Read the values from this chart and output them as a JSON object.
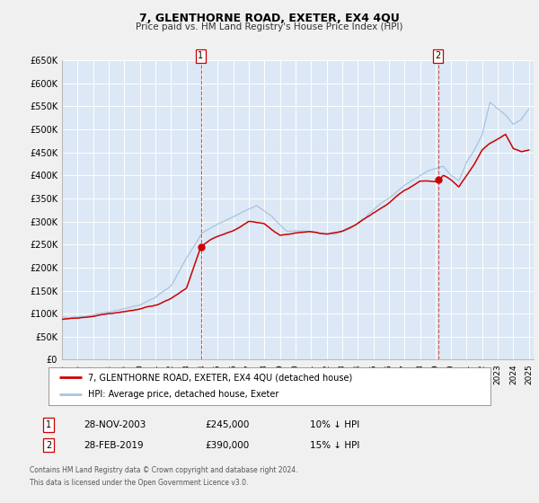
{
  "title": "7, GLENTHORNE ROAD, EXETER, EX4 4QU",
  "subtitle": "Price paid vs. HM Land Registry's House Price Index (HPI)",
  "legend_line1": "7, GLENTHORNE ROAD, EXETER, EX4 4QU (detached house)",
  "legend_line2": "HPI: Average price, detached house, Exeter",
  "annotation1_label": "1",
  "annotation1_date": "28-NOV-2003",
  "annotation1_price": "£245,000",
  "annotation1_hpi": "10% ↓ HPI",
  "annotation2_label": "2",
  "annotation2_date": "28-FEB-2019",
  "annotation2_price": "£390,000",
  "annotation2_hpi": "15% ↓ HPI",
  "footer1": "Contains HM Land Registry data © Crown copyright and database right 2024.",
  "footer2": "This data is licensed under the Open Government Licence v3.0.",
  "hpi_color": "#a8c4e0",
  "price_color": "#cc0000",
  "vline_color": "#cc0000",
  "fig_bg": "#f0f0f0",
  "plot_bg": "#dce8f5",
  "grid_color": "#ffffff",
  "ylim_max": 650000,
  "xlim_start": 1995.0,
  "xlim_end": 2025.3,
  "sale1_x": 2003.917,
  "sale1_y": 245000,
  "sale2_x": 2019.167,
  "sale2_y": 390000,
  "vline1_x": 2003.917,
  "vline2_x": 2019.167,
  "yticks": [
    0,
    50000,
    100000,
    150000,
    200000,
    250000,
    300000,
    350000,
    400000,
    450000,
    500000,
    550000,
    600000,
    650000
  ],
  "hpi_anchors_x": [
    1995.0,
    1996.0,
    1997.0,
    1998.0,
    1999.0,
    2000.0,
    2001.0,
    2002.0,
    2003.0,
    2004.0,
    2005.0,
    2006.0,
    2007.5,
    2008.5,
    2009.5,
    2010.5,
    2011.5,
    2012.5,
    2013.5,
    2014.5,
    2015.5,
    2016.5,
    2017.5,
    2018.5,
    2019.5,
    2020.0,
    2020.5,
    2021.0,
    2021.5,
    2022.0,
    2022.5,
    2023.0,
    2023.5,
    2024.0,
    2024.5,
    2025.0
  ],
  "hpi_anchors_y": [
    90000,
    93000,
    97000,
    104000,
    110000,
    118000,
    135000,
    162000,
    220000,
    275000,
    295000,
    310000,
    335000,
    310000,
    278000,
    280000,
    275000,
    272000,
    285000,
    310000,
    340000,
    365000,
    390000,
    410000,
    420000,
    400000,
    390000,
    430000,
    455000,
    490000,
    560000,
    545000,
    530000,
    510000,
    520000,
    545000
  ],
  "price_anchors_x": [
    1995.0,
    1996.0,
    1997.0,
    1998.0,
    1999.0,
    2000.0,
    2001.0,
    2002.0,
    2003.0,
    2003.917,
    2004.5,
    2005.0,
    2006.0,
    2007.0,
    2008.0,
    2009.0,
    2010.0,
    2011.0,
    2012.0,
    2013.0,
    2014.0,
    2015.0,
    2016.0,
    2017.0,
    2018.0,
    2019.0,
    2019.167,
    2019.5,
    2020.0,
    2020.5,
    2021.0,
    2021.5,
    2022.0,
    2022.5,
    2023.0,
    2023.5,
    2024.0,
    2024.5,
    2025.0
  ],
  "price_anchors_y": [
    88000,
    90000,
    94000,
    100000,
    105000,
    110000,
    118000,
    133000,
    155000,
    245000,
    260000,
    268000,
    280000,
    300000,
    295000,
    270000,
    275000,
    278000,
    272000,
    278000,
    295000,
    318000,
    340000,
    368000,
    388000,
    388000,
    390000,
    400000,
    390000,
    375000,
    400000,
    425000,
    455000,
    470000,
    480000,
    490000,
    458000,
    452000,
    455000
  ]
}
